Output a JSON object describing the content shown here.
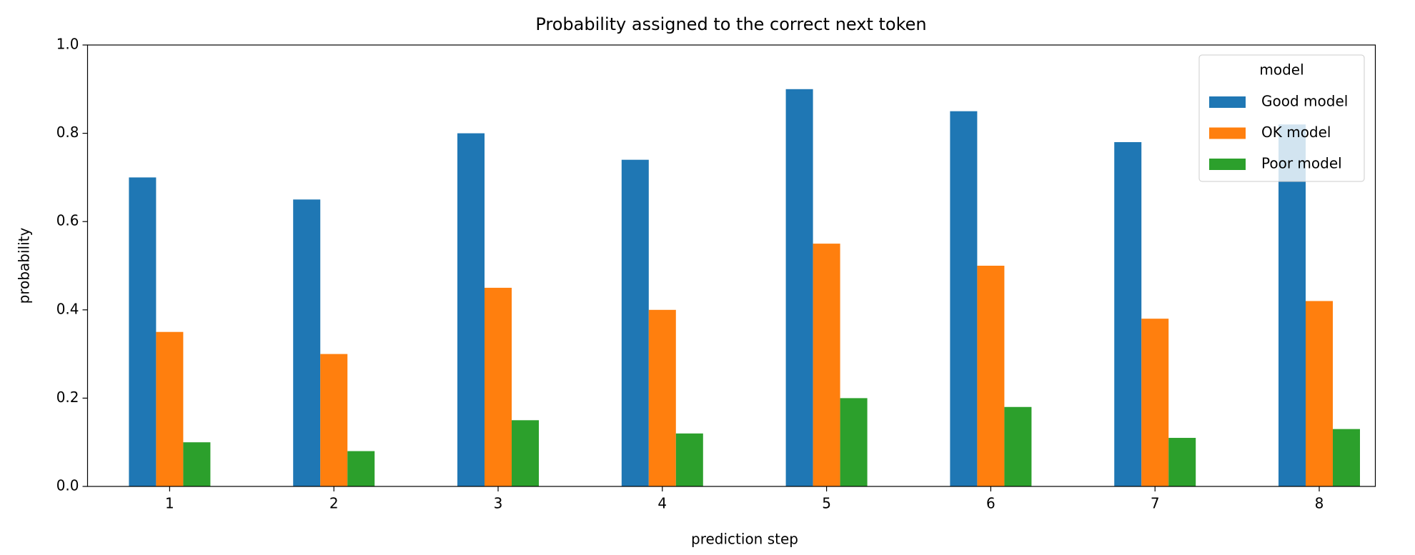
{
  "chart_data": {
    "type": "bar",
    "title": "Probability assigned to the correct next token",
    "x_label": "prediction step",
    "y_label": "probability",
    "categories": [
      "1",
      "2",
      "3",
      "4",
      "5",
      "6",
      "7",
      "8"
    ],
    "series": [
      {
        "name": "Good model",
        "color": "#1f77b4",
        "values": [
          0.7,
          0.65,
          0.8,
          0.74,
          0.9,
          0.85,
          0.78,
          0.82
        ]
      },
      {
        "name": "OK model",
        "color": "#ff7f0e",
        "values": [
          0.35,
          0.3,
          0.45,
          0.4,
          0.55,
          0.5,
          0.38,
          0.42
        ]
      },
      {
        "name": "Poor model",
        "color": "#2ca02c",
        "values": [
          0.1,
          0.08,
          0.15,
          0.12,
          0.2,
          0.18,
          0.11,
          0.13
        ]
      }
    ],
    "legend_title": "model",
    "legend_position": "upper right",
    "ylim": [
      0,
      1
    ],
    "yticks": [
      {
        "value": 0,
        "label": "0.0"
      },
      0.2,
      0.4,
      0.6,
      0.8,
      {
        "value": 1,
        "label": "1.0"
      }
    ],
    "grid": false
  }
}
